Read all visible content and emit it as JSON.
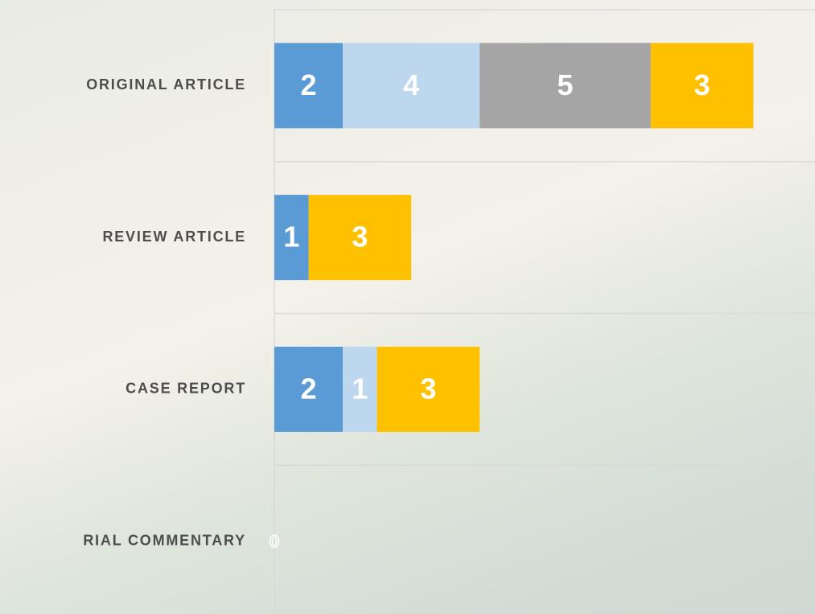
{
  "chart_data": {
    "type": "stacked-bar-horizontal",
    "categories": [
      "ORIGINAL ARTICLE",
      "REVIEW ARTICLE",
      "CASE REPORT",
      "RIAL COMMENTARY"
    ],
    "series": [
      {
        "color": "#5b9bd5",
        "values": [
          2,
          1,
          2,
          0
        ]
      },
      {
        "color": "#bdd7ee",
        "values": [
          4,
          null,
          1,
          null
        ]
      },
      {
        "color": "#a5a5a5",
        "values": [
          5,
          null,
          null,
          null
        ]
      },
      {
        "color": "#ffc000",
        "values": [
          3,
          3,
          3,
          null
        ]
      }
    ],
    "xlim": [
      0,
      15.8
    ]
  }
}
